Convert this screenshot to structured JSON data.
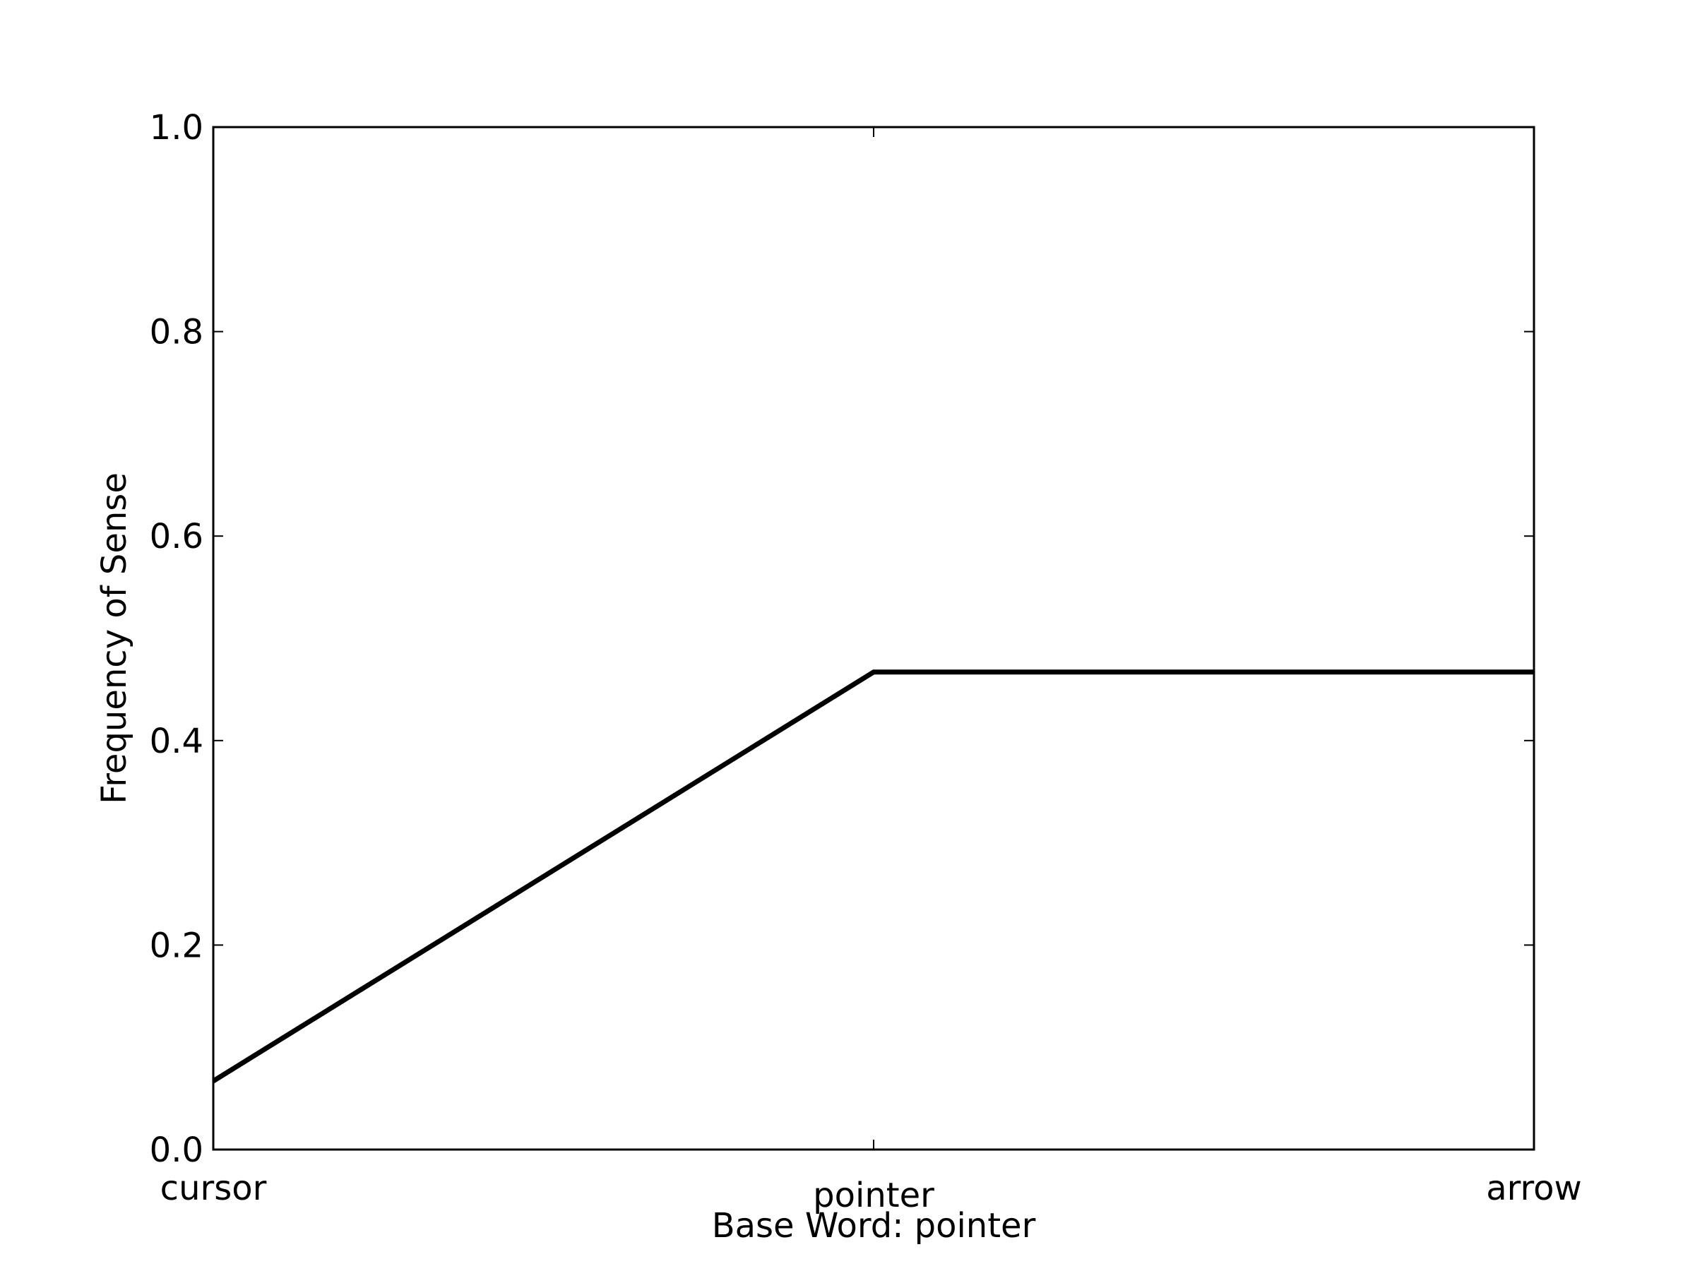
{
  "chart_data": {
    "type": "line",
    "title": "",
    "xlabel": "Base Word: pointer",
    "ylabel": "Frequency of Sense",
    "categories": [
      "cursor",
      "pointer",
      "arrow"
    ],
    "series": [
      {
        "values": [
          0.067,
          0.467,
          0.467
        ],
        "color": "#000000"
      }
    ],
    "ylim": [
      0.0,
      1.0
    ],
    "yticks": [
      "0.0",
      "0.2",
      "0.4",
      "0.6",
      "0.8",
      "1.0"
    ],
    "grid": false,
    "legend": "none"
  }
}
